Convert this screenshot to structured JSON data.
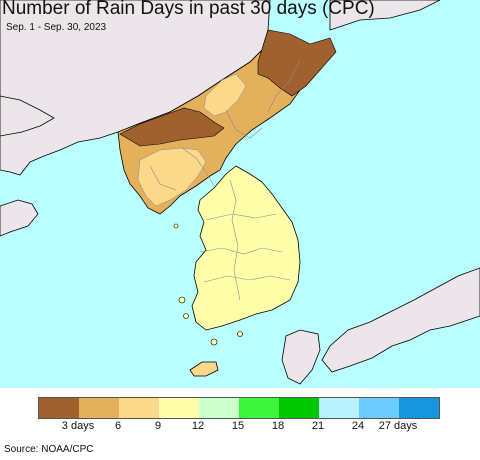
{
  "title": "Number of Rain Days in past 30 days (CPC)",
  "subtitle": "Sep. 1 - Sep. 30, 2023",
  "source": "Source: NOAA/CPC",
  "colors": {
    "sea": "#b9ffff",
    "land_gray": "#ece6ea",
    "border": "#8a8a8a",
    "coast": "#000000"
  },
  "legend": {
    "colors": [
      "#a0612f",
      "#e3b15c",
      "#fcd88b",
      "#ffffaa",
      "#cdffcd",
      "#3cf53c",
      "#00c800",
      "#b9f2ff",
      "#6ccbff",
      "#1895df"
    ],
    "labels": [
      "3 days",
      "6",
      "9",
      "12",
      "15",
      "18",
      "21",
      "24",
      "27 days"
    ]
  }
}
